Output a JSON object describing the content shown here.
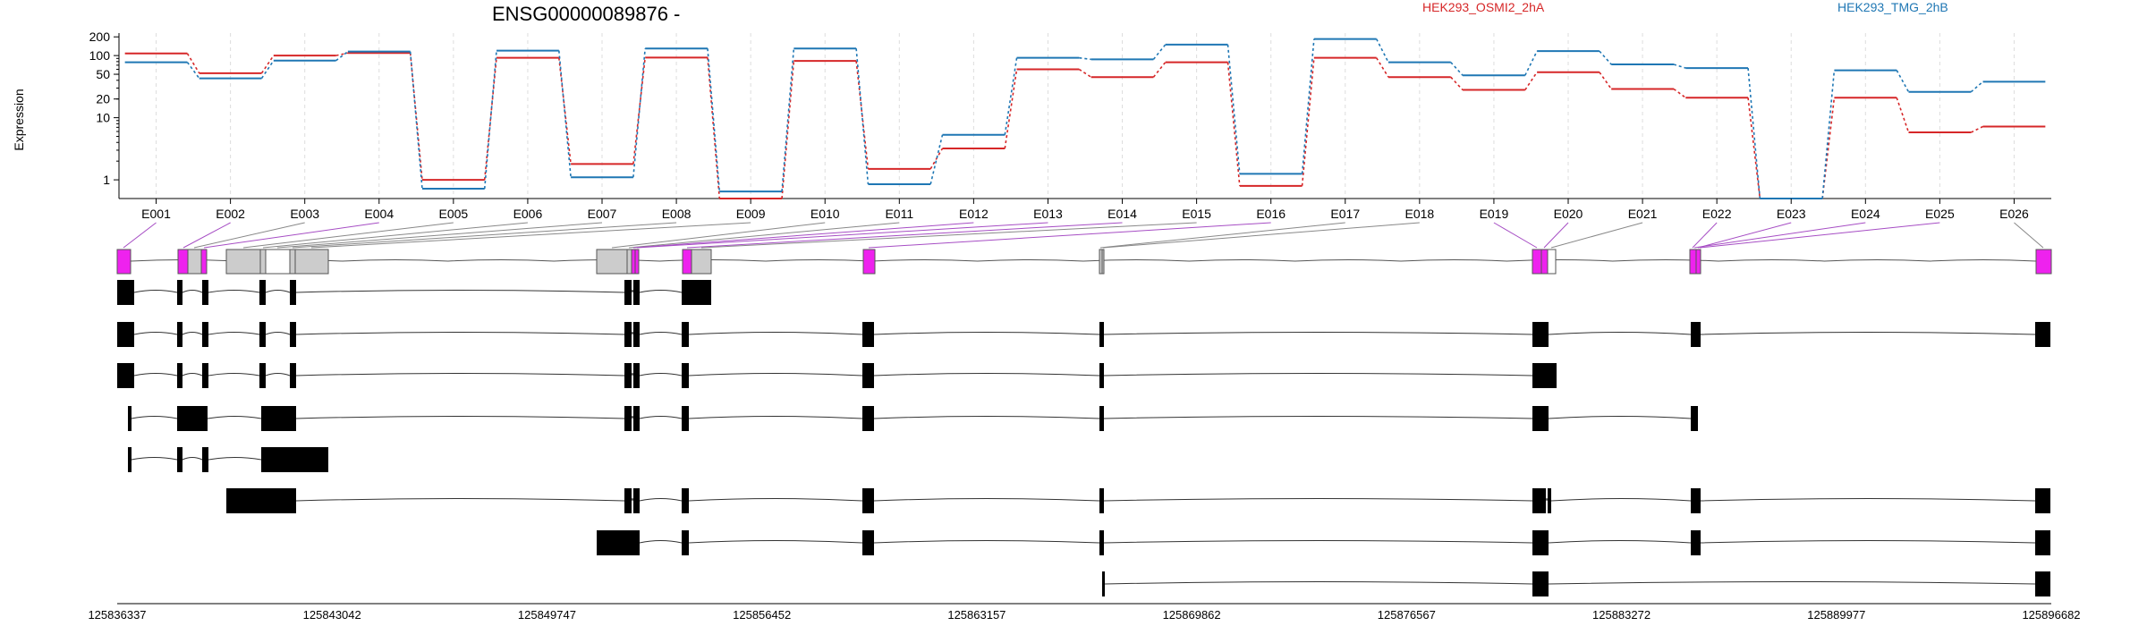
{
  "chart_data": {
    "type": "line",
    "title": "ENSG00000089876 -",
    "ylabel": "Expression",
    "yscale": "log",
    "ylim": [
      0.5,
      230
    ],
    "yticks": [
      "200",
      "100",
      "50",
      "20",
      "10",
      "1"
    ],
    "ytick_values": [
      200,
      100,
      50,
      20,
      10,
      1
    ],
    "categories": [
      "E001",
      "E002",
      "E003",
      "E004",
      "E005",
      "E006",
      "E007",
      "E008",
      "E009",
      "E010",
      "E011",
      "E012",
      "E013",
      "E014",
      "E015",
      "E016",
      "E017",
      "E018",
      "E019",
      "E020",
      "E021",
      "E022",
      "E023",
      "E024",
      "E025",
      "E026"
    ],
    "series": [
      {
        "name": "HEK293_OSMI2_2hA",
        "color": "#d62728",
        "values": [
          108,
          52,
          100,
          110,
          1.0,
          92,
          1.8,
          93,
          0.5,
          82,
          1.5,
          3.2,
          60,
          45,
          78,
          0.8,
          92,
          45,
          28,
          54,
          29,
          21,
          0.5,
          21,
          5.8,
          7.2
        ]
      },
      {
        "name": "HEK293_TMG_2hB",
        "color": "#1f77b4",
        "values": [
          78,
          43,
          83,
          116,
          0.72,
          120,
          1.1,
          130,
          0.65,
          130,
          0.85,
          5.3,
          92,
          87,
          150,
          1.25,
          185,
          78,
          48,
          118,
          72,
          63,
          0.5,
          58,
          26,
          38
        ]
      }
    ],
    "xcoord_ticks": [
      "125836337",
      "125843042",
      "125849747",
      "125856452",
      "125863157",
      "125869862",
      "125876567",
      "125883272",
      "125889977",
      "125896682"
    ]
  }
}
